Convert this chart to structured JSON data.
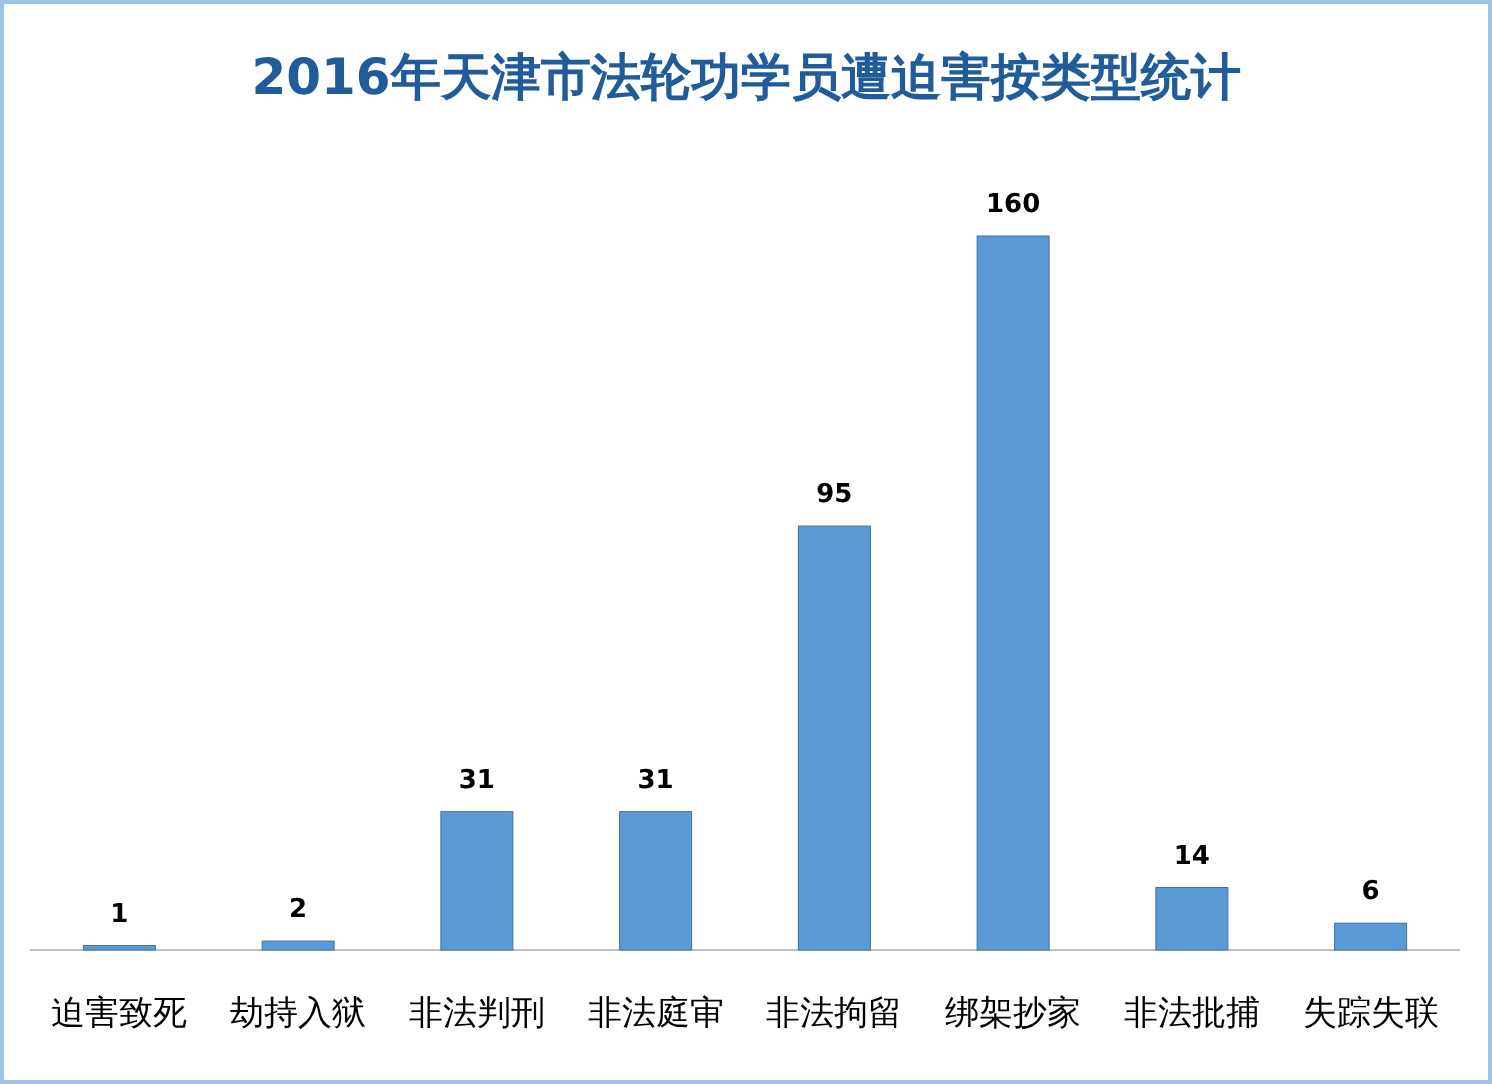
{
  "chart_data": {
    "type": "bar",
    "title": "2016年天津市法轮功学员遭迫害按类型统计",
    "categories": [
      "迫害致死",
      "劫持入狱",
      "非法判刑",
      "非法庭审",
      "非法拘留",
      "绑架抄家",
      "非法批捕",
      "失踪失联"
    ],
    "values": [
      1,
      2,
      31,
      31,
      95,
      160,
      14,
      6
    ],
    "color": "#5b9bd5",
    "data_labels": true
  }
}
